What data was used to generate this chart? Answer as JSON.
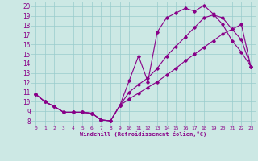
{
  "xlabel": "Windchill (Refroidissement éolien,°C)",
  "bg_color": "#cce8e4",
  "line_color": "#880088",
  "grid_color": "#99cccc",
  "xlim": [
    -0.5,
    23.5
  ],
  "ylim": [
    7.5,
    20.5
  ],
  "xticks": [
    0,
    1,
    2,
    3,
    4,
    5,
    6,
    7,
    8,
    9,
    10,
    11,
    12,
    13,
    14,
    15,
    16,
    17,
    18,
    19,
    20,
    21,
    22,
    23
  ],
  "yticks": [
    8,
    9,
    10,
    11,
    12,
    13,
    14,
    15,
    16,
    17,
    18,
    19,
    20
  ],
  "series1_x": [
    0,
    1,
    2,
    3,
    4,
    5,
    6,
    7,
    8,
    9,
    10,
    11,
    12,
    13,
    14,
    15,
    16,
    17,
    18,
    19,
    20,
    21,
    22,
    23
  ],
  "series1_y": [
    10.8,
    10.0,
    9.5,
    8.9,
    8.9,
    8.9,
    8.8,
    8.1,
    8.0,
    9.6,
    12.2,
    14.8,
    12.1,
    17.3,
    18.8,
    19.3,
    19.8,
    19.5,
    20.1,
    19.2,
    18.1,
    16.4,
    15.2,
    13.7
  ],
  "series2_x": [
    0,
    1,
    2,
    3,
    4,
    5,
    6,
    7,
    8,
    9,
    10,
    11,
    12,
    13,
    14,
    15,
    16,
    17,
    18,
    19,
    20,
    21,
    22,
    23
  ],
  "series2_y": [
    10.8,
    10.0,
    9.5,
    8.9,
    8.9,
    8.9,
    8.8,
    8.1,
    8.0,
    9.6,
    10.3,
    10.9,
    11.5,
    12.1,
    12.8,
    13.5,
    14.3,
    15.0,
    15.7,
    16.4,
    17.1,
    17.6,
    18.1,
    13.7
  ],
  "series3_x": [
    0,
    1,
    2,
    3,
    4,
    5,
    6,
    7,
    8,
    9,
    10,
    11,
    12,
    13,
    14,
    15,
    16,
    17,
    18,
    19,
    20,
    21,
    22,
    23
  ],
  "series3_y": [
    10.8,
    10.0,
    9.5,
    8.9,
    8.9,
    8.9,
    8.8,
    8.1,
    8.0,
    9.6,
    11.0,
    11.8,
    12.5,
    13.5,
    14.8,
    15.8,
    16.8,
    17.8,
    18.8,
    19.1,
    18.8,
    17.6,
    16.5,
    13.7
  ]
}
